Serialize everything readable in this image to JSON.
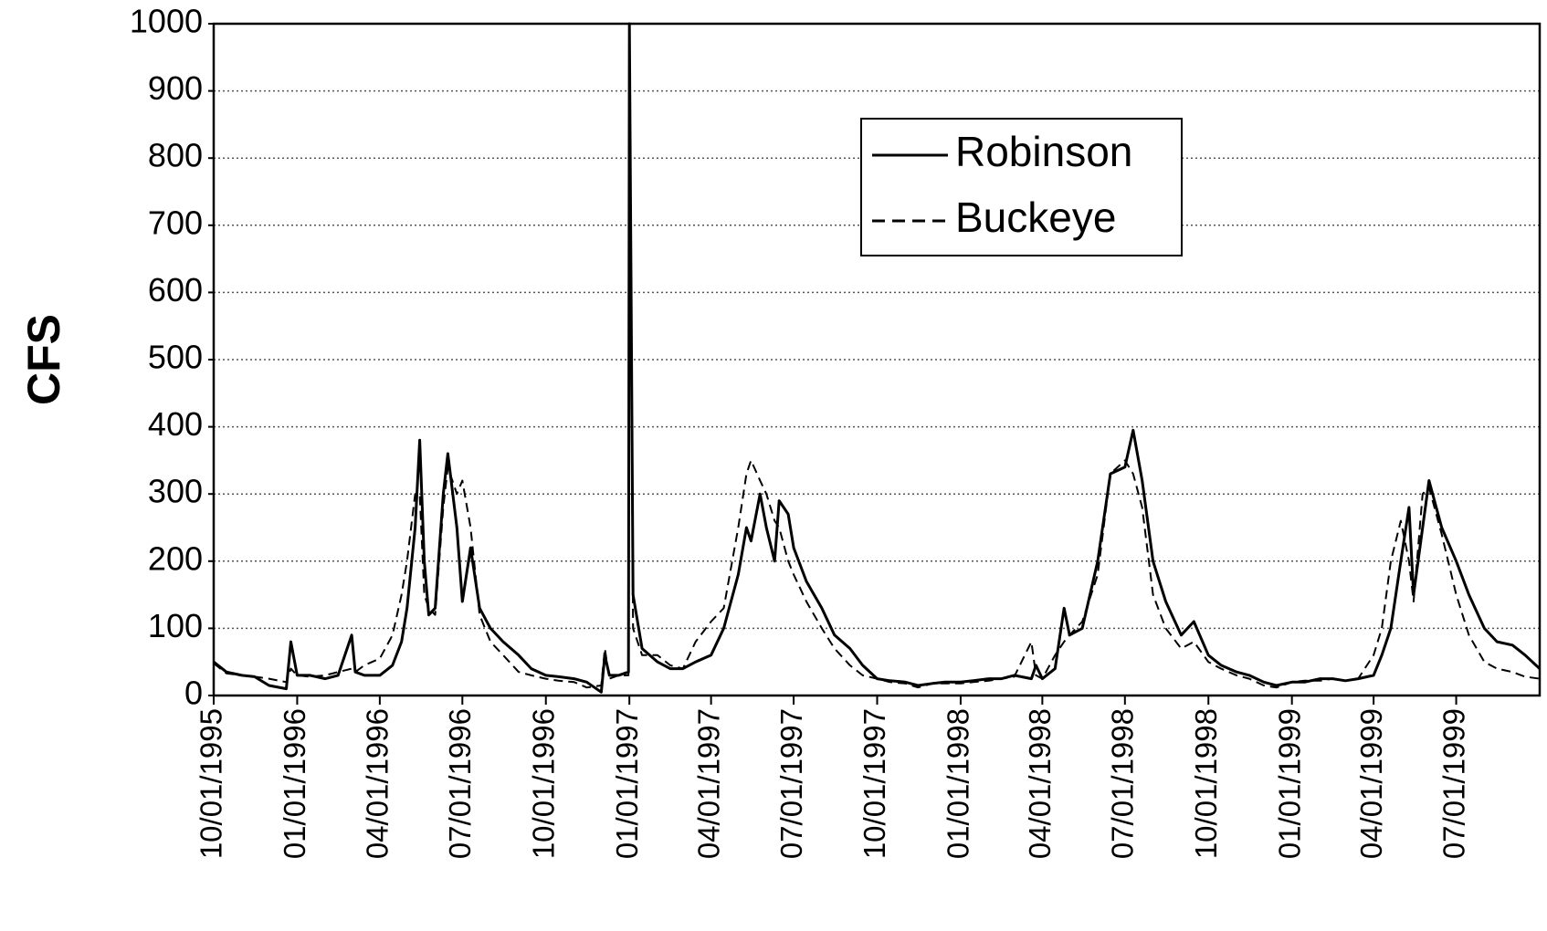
{
  "chart_data": {
    "type": "line",
    "ylabel": "CFS",
    "x": [
      "10/01/1995",
      "10/15/1995",
      "11/01/1995",
      "11/15/1995",
      "12/01/1995",
      "12/20/1995",
      "12/25/1995",
      "01/01/1996",
      "01/15/1996",
      "02/01/1996",
      "02/15/1996",
      "03/01/1996",
      "03/05/1996",
      "03/15/1996",
      "04/01/1996",
      "04/15/1996",
      "04/25/1996",
      "05/01/1996",
      "05/10/1996",
      "05/15/1996",
      "05/20/1996",
      "05/25/1996",
      "06/01/1996",
      "06/10/1996",
      "06/15/1996",
      "06/25/1996",
      "07/01/1996",
      "07/10/1996",
      "07/20/1996",
      "08/01/1996",
      "08/15/1996",
      "09/01/1996",
      "09/15/1996",
      "10/01/1996",
      "10/15/1996",
      "11/01/1996",
      "11/15/1996",
      "12/01/1996",
      "12/05/1996",
      "12/10/1996",
      "12/20/1996",
      "12/31/1996",
      "01/01/1997",
      "01/05/1997",
      "01/15/1997",
      "02/01/1997",
      "02/15/1997",
      "03/01/1997",
      "03/15/1997",
      "04/01/1997",
      "04/15/1997",
      "05/01/1997",
      "05/10/1997",
      "05/15/1997",
      "05/25/1997",
      "06/01/1997",
      "06/10/1997",
      "06/15/1997",
      "06/25/1997",
      "07/01/1997",
      "07/15/1997",
      "08/01/1997",
      "08/15/1997",
      "09/01/1997",
      "09/15/1997",
      "10/01/1997",
      "10/15/1997",
      "11/01/1997",
      "11/15/1997",
      "12/01/1997",
      "12/15/1997",
      "01/01/1998",
      "01/15/1998",
      "02/01/1998",
      "02/15/1998",
      "03/01/1998",
      "03/20/1998",
      "03/25/1998",
      "04/01/1998",
      "04/15/1998",
      "04/25/1998",
      "05/01/1998",
      "05/15/1998",
      "06/01/1998",
      "06/15/1998",
      "07/01/1998",
      "07/10/1998",
      "07/20/1998",
      "08/01/1998",
      "08/15/1998",
      "09/01/1998",
      "09/15/1998",
      "10/01/1998",
      "10/15/1998",
      "11/01/1998",
      "11/15/1998",
      "12/01/1998",
      "12/15/1998",
      "01/01/1999",
      "01/15/1999",
      "02/01/1999",
      "02/15/1999",
      "03/01/1999",
      "03/15/1999",
      "04/01/1999",
      "04/10/1999",
      "04/20/1999",
      "05/01/1999",
      "05/10/1999",
      "05/15/1999",
      "05/25/1999",
      "06/01/1999",
      "06/15/1999",
      "07/01/1999",
      "07/15/1999",
      "08/01/1999",
      "08/15/1999",
      "09/01/1999",
      "09/15/1999",
      "10/01/1999"
    ],
    "series": [
      {
        "name": "Robinson",
        "color": "#000000",
        "line_style": "solid",
        "values": [
          50,
          35,
          30,
          28,
          15,
          10,
          80,
          30,
          30,
          25,
          30,
          90,
          35,
          30,
          30,
          45,
          80,
          130,
          250,
          380,
          200,
          120,
          130,
          300,
          360,
          250,
          140,
          220,
          130,
          100,
          80,
          60,
          40,
          30,
          28,
          25,
          20,
          5,
          60,
          30,
          30,
          35,
          1000,
          150,
          70,
          50,
          40,
          40,
          50,
          60,
          100,
          180,
          250,
          230,
          300,
          250,
          200,
          290,
          270,
          220,
          170,
          130,
          90,
          70,
          45,
          25,
          22,
          20,
          15,
          18,
          20,
          20,
          22,
          25,
          25,
          30,
          25,
          45,
          25,
          40,
          130,
          90,
          100,
          200,
          330,
          340,
          395,
          320,
          200,
          140,
          90,
          110,
          60,
          45,
          35,
          30,
          20,
          15,
          20,
          20,
          25,
          25,
          22,
          25,
          30,
          60,
          100,
          200,
          280,
          150,
          250,
          320,
          250,
          200,
          150,
          100,
          80,
          75,
          60,
          40
        ]
      },
      {
        "name": "Buckeye",
        "color": "#000000",
        "line_style": "dashed",
        "values": [
          48,
          33,
          30,
          28,
          25,
          20,
          40,
          30,
          28,
          30,
          35,
          40,
          35,
          45,
          55,
          90,
          150,
          200,
          300,
          300,
          150,
          130,
          120,
          280,
          340,
          300,
          320,
          250,
          120,
          80,
          60,
          35,
          30,
          25,
          22,
          20,
          12,
          15,
          70,
          25,
          30,
          30,
          1000,
          100,
          60,
          60,
          45,
          40,
          80,
          110,
          130,
          250,
          330,
          350,
          320,
          300,
          260,
          250,
          200,
          180,
          140,
          100,
          70,
          45,
          30,
          25,
          20,
          18,
          12,
          18,
          18,
          18,
          20,
          22,
          25,
          28,
          80,
          30,
          25,
          60,
          80,
          90,
          110,
          180,
          330,
          350,
          330,
          280,
          150,
          100,
          70,
          80,
          50,
          40,
          30,
          25,
          15,
          12,
          20,
          22,
          22,
          25,
          22,
          25,
          60,
          100,
          200,
          260,
          200,
          140,
          300,
          310,
          240,
          150,
          90,
          50,
          40,
          35,
          28,
          25
        ]
      }
    ],
    "xlim": [
      "10/01/1995",
      "10/01/1999"
    ],
    "xticks": [
      "10/01/1995",
      "01/01/1996",
      "04/01/1996",
      "07/01/1996",
      "10/01/1996",
      "01/01/1997",
      "04/01/1997",
      "07/01/1997",
      "10/01/1997",
      "01/01/1998",
      "04/01/1998",
      "07/01/1998",
      "10/01/1998",
      "01/01/1999",
      "04/01/1999",
      "07/01/1999"
    ],
    "ylim": [
      0,
      1000
    ],
    "yticks": [
      0,
      100,
      200,
      300,
      400,
      500,
      600,
      700,
      800,
      900,
      1000
    ],
    "grid": true,
    "legend": "upper center"
  }
}
